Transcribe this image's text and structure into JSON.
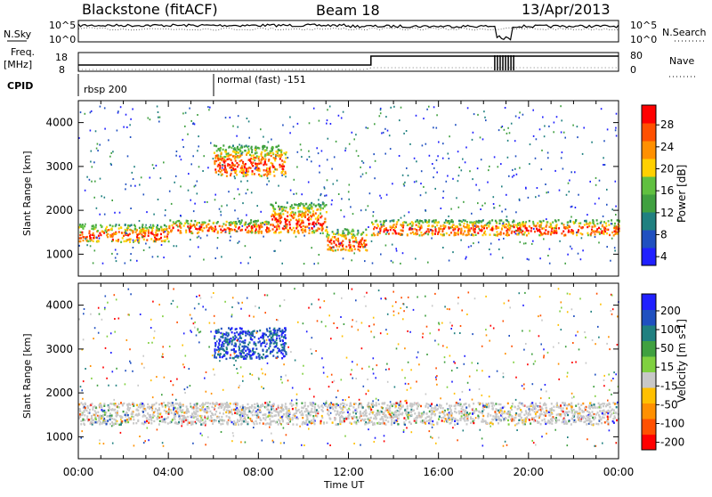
{
  "header": {
    "station": "Blackstone (fitACF)",
    "beam": "Beam 18",
    "date": "13/Apr/2013"
  },
  "summary_panels": {
    "noise_left_label": "N.Sky",
    "noise_right_label": "N.Search",
    "noise_left_ticks": [
      "10^5",
      "10^0"
    ],
    "noise_right_ticks": [
      "10^5",
      "10^0"
    ],
    "freq_label_1": "Freq.",
    "freq_label_2": "[MHz]",
    "freq_ticks": [
      "18",
      "8"
    ],
    "nave_label": "Nave",
    "nave_ticks": [
      "80",
      "0"
    ],
    "cpid_label": "CPID",
    "cpid_segments": [
      {
        "name": "rbsp 200",
        "start_hour": 0
      },
      {
        "name": "normal (fast) -151",
        "start_hour": 6.0
      }
    ]
  },
  "chart_data": [
    {
      "type": "heatmap",
      "title": "",
      "xlabel": "Time UT",
      "ylabel": "Slant Range [km]",
      "xlim": [
        0,
        24
      ],
      "ylim": [
        500,
        4500
      ],
      "xticks": [
        "00:00",
        "04:00",
        "08:00",
        "12:00",
        "16:00",
        "20:00",
        "00:00"
      ],
      "yticks": [
        "1000",
        "2000",
        "3000",
        "4000"
      ],
      "colorbar": {
        "label": "Power [dB]",
        "ticks": [
          "28",
          "24",
          "20",
          "16",
          "12",
          "8",
          "4"
        ],
        "range": [
          0,
          30
        ],
        "colors": [
          "#2020ff",
          "#2050c0",
          "#208080",
          "#40a040",
          "#60c040",
          "#ffd000",
          "#ff9000",
          "#ff5000",
          "#ff0000"
        ]
      },
      "echo_regions": [
        {
          "t_start": 0.0,
          "t_end": 4.0,
          "range_km": [
            1300,
            1700
          ]
        },
        {
          "t_start": 4.0,
          "t_end": 8.5,
          "range_km": [
            1500,
            1800
          ]
        },
        {
          "t_start": 8.5,
          "t_end": 11.0,
          "range_km": [
            1500,
            2200
          ]
        },
        {
          "t_start": 11.0,
          "t_end": 12.8,
          "range_km": [
            1100,
            1600
          ]
        },
        {
          "t_start": 13.0,
          "t_end": 24.0,
          "range_km": [
            1450,
            1800
          ]
        },
        {
          "t_start": 6.0,
          "t_end": 9.2,
          "range_km": [
            2800,
            3500
          ]
        }
      ]
    },
    {
      "type": "heatmap",
      "title": "",
      "xlabel": "Time UT",
      "ylabel": "Slant Range [km]",
      "xlim": [
        0,
        24
      ],
      "ylim": [
        500,
        4500
      ],
      "xticks": [
        "00:00",
        "04:00",
        "08:00",
        "12:00",
        "16:00",
        "20:00",
        "00:00"
      ],
      "yticks": [
        "1000",
        "2000",
        "3000",
        "4000"
      ],
      "colorbar": {
        "label": "Velocity [m s-1]",
        "ticks": [
          "200",
          "100",
          "50",
          "15",
          "-15",
          "-50",
          "-100",
          "-200"
        ],
        "range": [
          -250,
          250
        ],
        "colors": [
          "#ff0000",
          "#ff5000",
          "#ff9000",
          "#ffc000",
          "#c8c8c8",
          "#80d040",
          "#40a040",
          "#208080",
          "#2050c0",
          "#2020ff"
        ]
      },
      "echo_regions": [
        {
          "t_start": 0.0,
          "t_end": 24.0,
          "range_km": [
            1300,
            1800
          ],
          "velocity": 0
        },
        {
          "t_start": 6.0,
          "t_end": 9.2,
          "range_km": [
            2800,
            3500
          ],
          "velocity": 150
        }
      ]
    }
  ]
}
